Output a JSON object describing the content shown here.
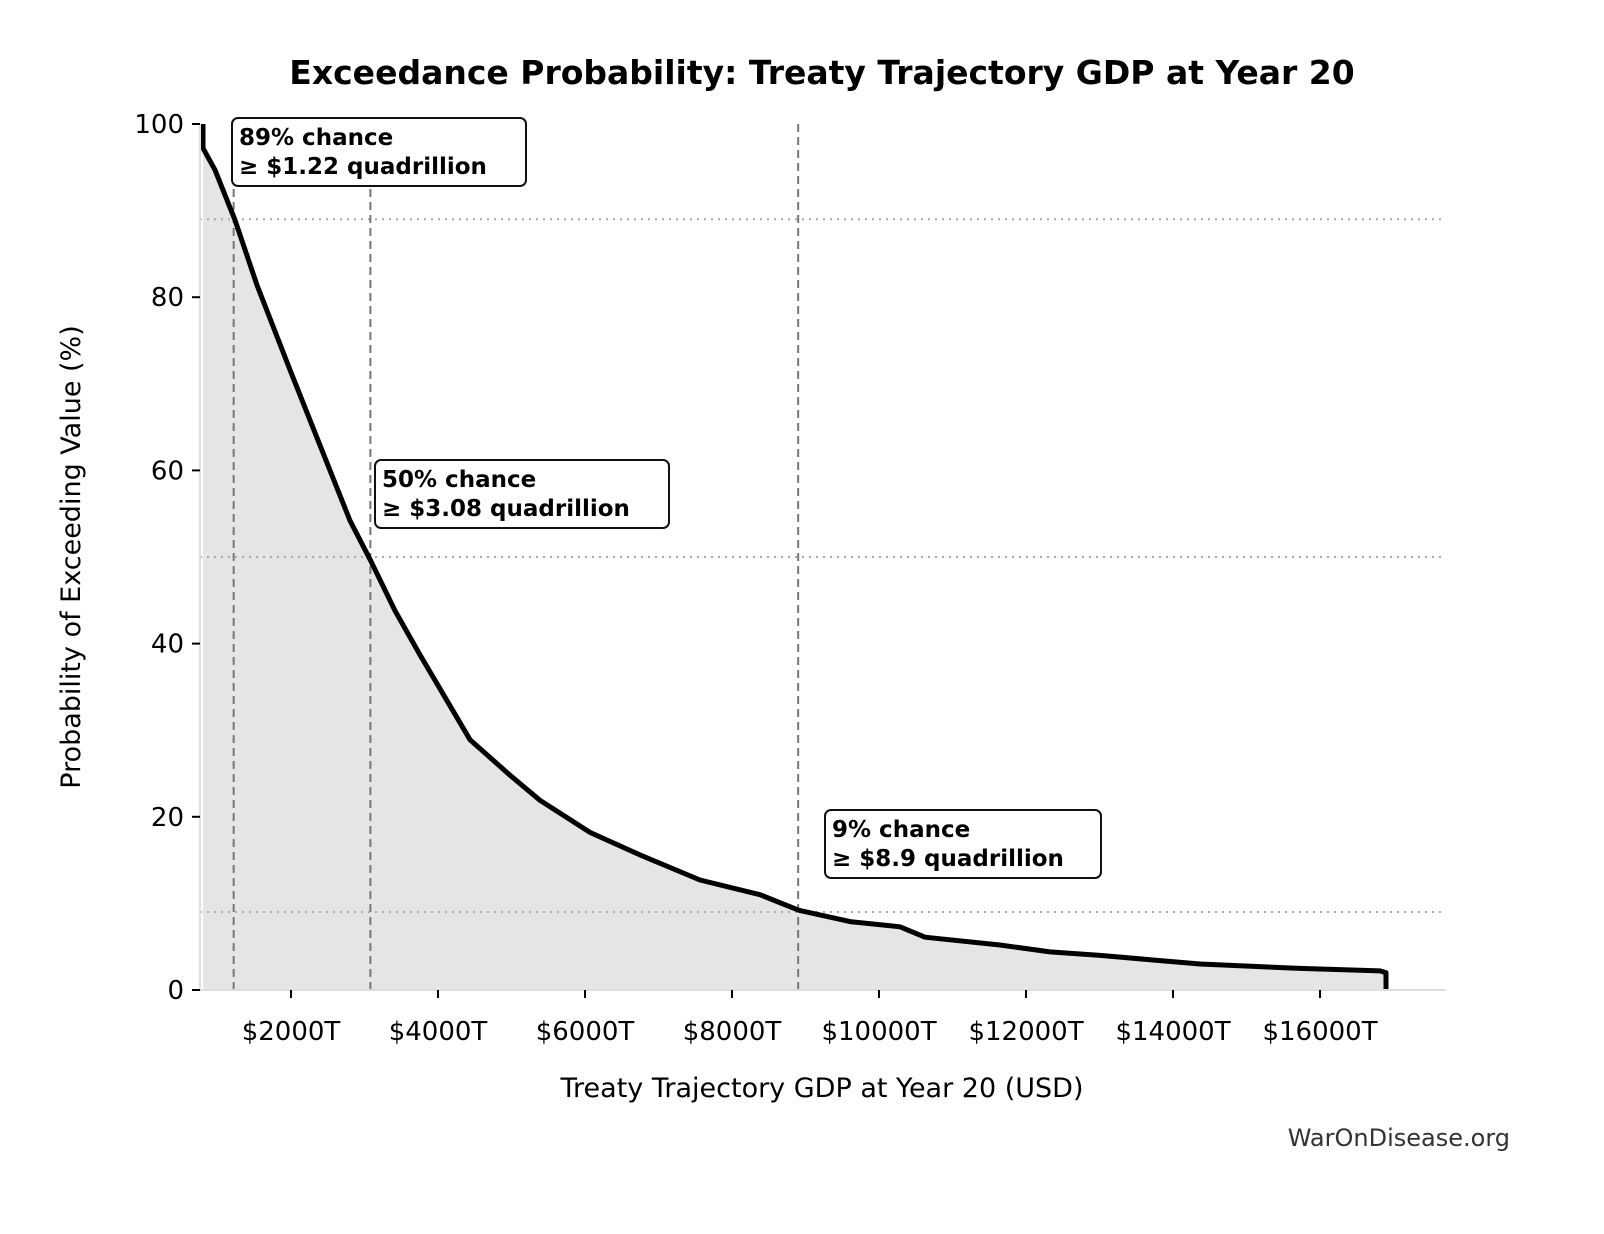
{
  "chart_data": {
    "type": "area",
    "title": "Exceedance Probability: Treaty Trajectory GDP at Year 20",
    "xlabel": "Treaty Trajectory GDP at Year 20 (USD)",
    "ylabel": "Probability of Exceeding Value (%)",
    "xlim": [
      762,
      17714
    ],
    "ylim": [
      0,
      100
    ],
    "x_ticks": [
      2000,
      4000,
      6000,
      8000,
      10000,
      12000,
      14000,
      16000
    ],
    "x_tick_labels": [
      "$2000T",
      "$4000T",
      "$6000T",
      "$8000T",
      "$10000T",
      "$12000T",
      "$14000T",
      "$16000T"
    ],
    "y_ticks": [
      0,
      20,
      40,
      60,
      80,
      100
    ],
    "y_tick_labels": [
      "0",
      "20",
      "40",
      "60",
      "80",
      "100"
    ],
    "grid": false,
    "series": [
      {
        "color": "#000000",
        "fill": "#e5e5e5",
        "x": [
          803,
          803,
          966,
          1238,
          1537,
          1986,
          2395,
          2803,
          3088,
          3415,
          3755,
          4435,
          4980,
          5388,
          6068,
          6748,
          7565,
          8381,
          8912,
          9605,
          10286,
          10626,
          11646,
          12327,
          13007,
          13687,
          14367,
          15728,
          16816,
          16898,
          16898
        ],
        "y": [
          100,
          97.2,
          94.7,
          88.9,
          81.4,
          71.6,
          62.9,
          54.2,
          49.5,
          43.8,
          38.7,
          28.9,
          24.8,
          21.9,
          18.2,
          15.6,
          12.7,
          11.0,
          9.2,
          7.9,
          7.3,
          6.1,
          5.2,
          4.4,
          4.0,
          3.5,
          3.0,
          2.5,
          2.2,
          2.0,
          0
        ]
      }
    ],
    "annotations": [
      {
        "x": 1220,
        "y": 89,
        "line1": "89% chance",
        "line2": "≥ $1.22 quadrillion"
      },
      {
        "x": 3080,
        "y": 50,
        "line1": "50% chance",
        "line2": "≥ $3.08 quadrillion"
      },
      {
        "x": 8900,
        "y": 9,
        "line1": "9% chance",
        "line2": "≥ $8.9 quadrillion"
      }
    ]
  },
  "credit": "WarOnDisease.org"
}
